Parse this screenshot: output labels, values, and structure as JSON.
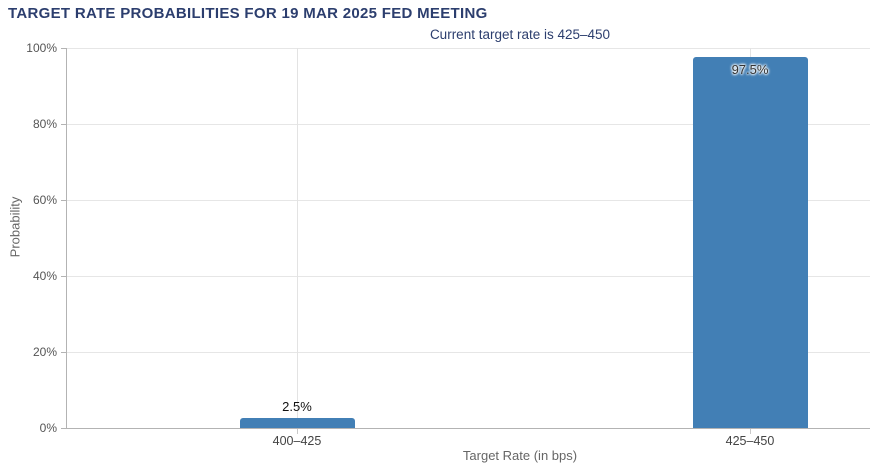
{
  "chart_data": {
    "type": "bar",
    "title": "TARGET RATE PROBABILITIES FOR 19 MAR 2025 FED MEETING",
    "subtitle": "Current target rate is 425–450",
    "xlabel": "Target Rate (in bps)",
    "ylabel": "Probability",
    "categories": [
      "400–425",
      "425–450"
    ],
    "values": [
      2.5,
      97.5
    ],
    "value_labels": [
      "2.5%",
      "97.5%"
    ],
    "ytick_labels": [
      "0%",
      "20%",
      "40%",
      "60%",
      "80%",
      "100%"
    ],
    "ylim": [
      0,
      100
    ],
    "legend": "none",
    "grid": "horizontal lines every 20%, vertical line at each category center",
    "colors": {
      "bar": "#427FB5",
      "title": "#2C3E6E",
      "axis": "#B3B3B3",
      "gridline": "#E6E6E6"
    }
  }
}
